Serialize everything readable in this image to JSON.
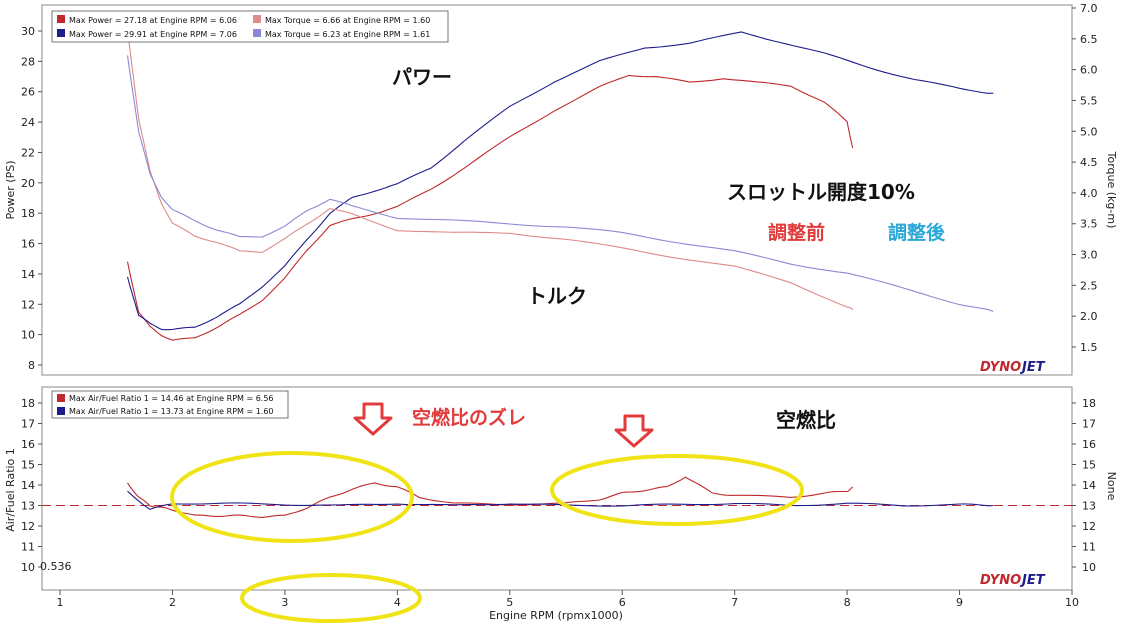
{
  "colors": {
    "before": "#c0282d",
    "after": "#1d1d8c",
    "marker": "#e23b3b",
    "ellipse": "#f0e416",
    "note_blue": "#2aa7d6"
  },
  "top": {
    "ylabel_left": "Power (PS)",
    "ylabel_right": "Torque (kg-m)",
    "left_ticks": [
      "8",
      "10",
      "12",
      "14",
      "16",
      "18",
      "20",
      "22",
      "24",
      "26",
      "28",
      "30"
    ],
    "right_ticks": [
      "1.5",
      "2.0",
      "2.5",
      "3.0",
      "3.5",
      "4.0",
      "4.5",
      "5.0",
      "5.5",
      "6.0",
      "6.5",
      "7.0"
    ],
    "legend": [
      {
        "text": "Max Power = 27.18 at Engine RPM = 6.06",
        "color": "#c0282d"
      },
      {
        "text": "Max Power = 29.91 at Engine RPM = 7.06",
        "color": "#1d1d8c"
      },
      {
        "text": "Max Torque = 6.66 at Engine RPM = 1.60",
        "color": "#e08a8a"
      },
      {
        "text": "Max Torque = 6.23 at Engine RPM = 1.61",
        "color": "#8a8ad6"
      }
    ],
    "notes": {
      "power": "パワー",
      "torque": "トルク",
      "throttle": "スロットル開度10%",
      "before": "調整前",
      "after": "調整後"
    },
    "logo": {
      "a": "DYNO",
      "b": "JET"
    }
  },
  "bottom": {
    "ylabel_left": "Air/Fuel Ratio 1",
    "ylabel_right": "None",
    "left_ticks": [
      "10",
      "11",
      "12",
      "13",
      "14",
      "15",
      "16",
      "17",
      "18"
    ],
    "right_ticks": [
      "10",
      "11",
      "12",
      "13",
      "14",
      "15",
      "16",
      "17",
      "18"
    ],
    "legend": [
      {
        "text": "Max Air/Fuel Ratio 1 = 14.46 at Engine RPM = 6.56",
        "color": "#c0282d"
      },
      {
        "text": "Max Air/Fuel Ratio 1 = 13.73 at Engine RPM = 1.60",
        "color": "#1d1d8c"
      }
    ],
    "cursor_value": "0.536",
    "notes": {
      "shift": "空燃比のズレ",
      "afr": "空燃比"
    },
    "logo": {
      "a": "DYNO",
      "b": "JET"
    }
  },
  "xaxis": {
    "label": "Engine RPM (rpmx1000)",
    "ticks": [
      "1",
      "2",
      "3",
      "4",
      "5",
      "6",
      "7",
      "8",
      "9",
      "10"
    ]
  },
  "chart_data": [
    {
      "type": "line",
      "xlabel": "Engine RPM (rpmx1000)",
      "ylabel": "Power (PS)",
      "xlim": [
        1,
        10
      ],
      "ylim": [
        7.5,
        31.5
      ],
      "series": [
        {
          "axis": "left",
          "color": "#c0282d",
          "x": [
            1.6,
            1.7,
            1.8,
            1.9,
            2.0,
            2.2,
            2.4,
            2.6,
            2.8,
            3.0,
            3.2,
            3.4,
            3.6,
            3.8,
            4.0,
            4.3,
            4.6,
            5.0,
            5.4,
            5.8,
            6.06,
            6.3,
            6.6,
            6.9,
            7.2,
            7.5,
            7.8,
            8.0,
            8.05
          ],
          "y": [
            14.8,
            11.5,
            10.5,
            10.0,
            9.6,
            9.8,
            10.5,
            11.3,
            12.3,
            13.7,
            15.6,
            17.2,
            17.6,
            18.0,
            18.4,
            19.6,
            21.0,
            23.0,
            24.8,
            26.3,
            27.1,
            27.0,
            26.6,
            26.9,
            26.6,
            26.4,
            25.3,
            24.0,
            22.3
          ]
        },
        {
          "axis": "left",
          "color": "#1d1d8c",
          "x": [
            1.6,
            1.7,
            1.8,
            1.9,
            2.0,
            2.2,
            2.4,
            2.6,
            2.8,
            3.0,
            3.2,
            3.4,
            3.6,
            3.8,
            4.0,
            4.3,
            4.6,
            5.0,
            5.4,
            5.8,
            6.2,
            6.6,
            7.06,
            7.4,
            7.8,
            8.2,
            8.6,
            9.0,
            9.3
          ],
          "y": [
            13.8,
            11.3,
            10.7,
            10.4,
            10.3,
            10.5,
            11.2,
            12.0,
            13.2,
            14.5,
            16.3,
            18.0,
            19.0,
            19.5,
            19.9,
            21.0,
            22.8,
            25.0,
            26.7,
            28.0,
            28.9,
            29.2,
            29.9,
            29.3,
            28.5,
            27.6,
            26.8,
            26.2,
            25.9
          ]
        },
        {
          "axis": "right",
          "color": "#e08a8a",
          "x": [
            1.6,
            1.7,
            1.8,
            1.9,
            2.0,
            2.2,
            2.4,
            2.6,
            2.8,
            3.0,
            3.2,
            3.4,
            3.6,
            4.0,
            4.5,
            5.0,
            5.5,
            6.0,
            6.5,
            7.0,
            7.5,
            8.0,
            8.05
          ],
          "y": [
            6.66,
            5.2,
            4.35,
            3.85,
            3.5,
            3.3,
            3.2,
            3.05,
            3.05,
            3.25,
            3.5,
            3.75,
            3.65,
            3.4,
            3.35,
            3.35,
            3.25,
            3.1,
            2.95,
            2.8,
            2.55,
            2.15,
            2.1
          ]
        },
        {
          "axis": "right",
          "color": "#8a8ad6",
          "x": [
            1.6,
            1.7,
            1.8,
            1.9,
            2.0,
            2.2,
            2.4,
            2.6,
            2.8,
            3.0,
            3.2,
            3.4,
            3.6,
            4.0,
            4.5,
            5.0,
            5.5,
            6.0,
            6.5,
            7.0,
            7.5,
            8.0,
            8.5,
            9.0,
            9.3
          ],
          "y": [
            6.23,
            5.0,
            4.3,
            3.95,
            3.72,
            3.55,
            3.4,
            3.28,
            3.3,
            3.45,
            3.72,
            3.9,
            3.78,
            3.6,
            3.55,
            3.5,
            3.45,
            3.35,
            3.2,
            3.05,
            2.85,
            2.7,
            2.45,
            2.2,
            2.08
          ]
        }
      ]
    },
    {
      "type": "line",
      "xlabel": "Engine RPM (rpmx1000)",
      "ylabel": "Air/Fuel Ratio 1",
      "xlim": [
        1,
        10
      ],
      "ylim": [
        9.5,
        18.5
      ],
      "reference_line": 13.0,
      "series": [
        {
          "color": "#c0282d",
          "x": [
            1.6,
            1.7,
            1.8,
            1.9,
            2.0,
            2.2,
            2.4,
            2.6,
            2.8,
            3.0,
            3.2,
            3.4,
            3.6,
            3.8,
            4.0,
            4.2,
            4.5,
            5.0,
            5.5,
            5.8,
            6.0,
            6.2,
            6.4,
            6.56,
            6.8,
            7.0,
            7.5,
            7.8,
            8.0,
            8.05
          ],
          "y": [
            14.1,
            13.4,
            13.0,
            12.9,
            12.8,
            12.5,
            12.5,
            12.5,
            12.45,
            12.5,
            12.9,
            13.4,
            13.8,
            14.1,
            13.9,
            13.4,
            13.1,
            13.05,
            13.1,
            13.3,
            13.6,
            13.75,
            13.9,
            14.4,
            13.6,
            13.5,
            13.4,
            13.6,
            13.7,
            13.9
          ]
        },
        {
          "color": "#1d1d8c",
          "x": [
            1.6,
            1.8,
            2.0,
            2.5,
            3.0,
            3.5,
            4.0,
            4.5,
            5.0,
            5.5,
            6.0,
            6.5,
            7.0,
            7.5,
            8.0,
            8.5,
            9.0,
            9.3
          ],
          "y": [
            13.7,
            12.8,
            13.1,
            13.1,
            13.05,
            13.0,
            13.1,
            13.0,
            13.1,
            13.0,
            13.0,
            13.05,
            13.1,
            13.0,
            13.1,
            13.0,
            13.05,
            13.0
          ]
        }
      ]
    }
  ]
}
